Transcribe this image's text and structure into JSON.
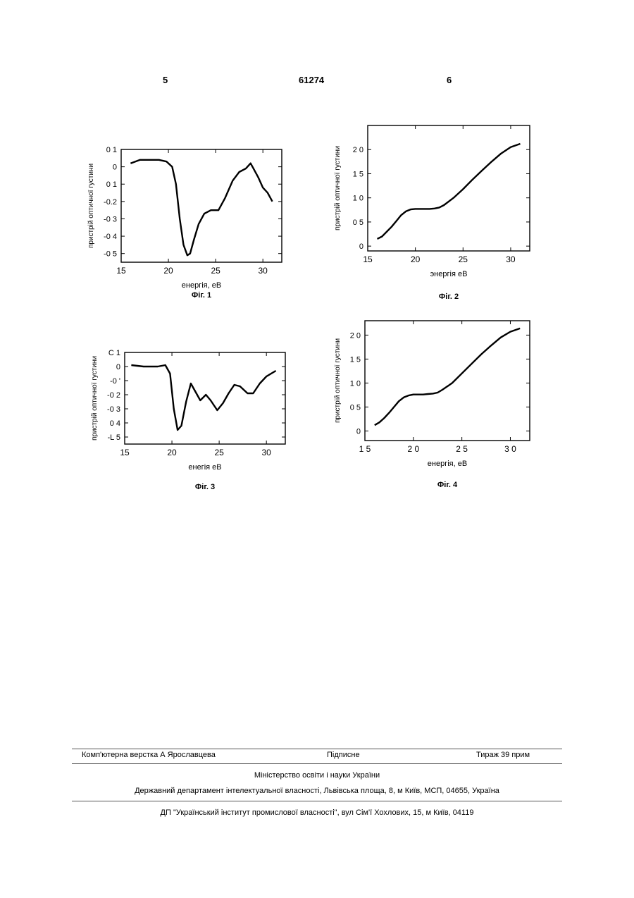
{
  "header": {
    "page_left": "5",
    "patent_number": "61274",
    "page_right": "6"
  },
  "footer": {
    "compositor": "Комп'ютерна верстка А  Ярославцева",
    "signature": "Підписне",
    "circulation": "Тираж 39 прим",
    "ministry": "Міністерство освіти і науки України",
    "department": "Державний департамент інтелектуальної власності, Львівська площа, 8, м  Київ, МСП, 04655, Україна",
    "institute": "ДП \"Український інститут промислової власності\", вул  Сім'ї Хохлових, 15, м  Київ, 04119"
  },
  "chart_data": [
    {
      "type": "line",
      "caption": "Фіг. 1",
      "xlabel": "енергія, еВ",
      "ylabel": "пристрій оптичної густини",
      "xlim": [
        15,
        32
      ],
      "ylim": [
        -0.55,
        0.1
      ],
      "xticks": [
        15,
        20,
        25,
        30
      ],
      "xtick_labels": [
        "15",
        "20",
        "25",
        "30"
      ],
      "yticks": [
        0.1,
        0,
        -0.1,
        -0.2,
        -0.3,
        -0.4,
        -0.5
      ],
      "ytick_labels": [
        "0 1",
        "0",
        "0 1",
        "-0.2",
        "-0 3",
        "-0 4",
        "-0 5"
      ],
      "series": [
        {
          "x": [
            16,
            17,
            18,
            19,
            19.8,
            20.4,
            20.8,
            21.2,
            21.6,
            22.0,
            22.3,
            22.7,
            23.2,
            23.8,
            24.5,
            25.3,
            26.0,
            26.8,
            27.5,
            28.2,
            28.7,
            29.0,
            29.5,
            30.0,
            30.5,
            31.0
          ],
          "y": [
            0.02,
            0.04,
            0.04,
            0.04,
            0.03,
            0.0,
            -0.1,
            -0.3,
            -0.45,
            -0.51,
            -0.5,
            -0.42,
            -0.33,
            -0.27,
            -0.25,
            -0.25,
            -0.18,
            -0.08,
            -0.03,
            -0.01,
            0.02,
            -0.01,
            -0.06,
            -0.12,
            -0.15,
            -0.2
          ]
        }
      ]
    },
    {
      "type": "line",
      "caption": "Фіг. 2",
      "xlabel": "энергія  еВ",
      "ylabel": "пристрій оптичної густини",
      "xlim": [
        15,
        32
      ],
      "ylim": [
        -0.1,
        2.5
      ],
      "xticks": [
        15,
        20,
        25,
        30
      ],
      "xtick_labels": [
        "15",
        "20",
        "25",
        "30"
      ],
      "yticks": [
        2.0,
        1.5,
        1.0,
        0.5,
        0
      ],
      "ytick_labels": [
        "2 0",
        "1 5",
        "1 0",
        "0 5",
        "0"
      ],
      "series": [
        {
          "x": [
            16,
            16.5,
            17,
            17.5,
            18,
            18.5,
            19,
            19.5,
            20,
            20.5,
            21,
            21.5,
            22,
            22.5,
            23,
            24,
            25,
            26,
            27,
            28,
            29,
            30,
            31
          ],
          "y": [
            0.15,
            0.2,
            0.3,
            0.4,
            0.52,
            0.64,
            0.72,
            0.76,
            0.77,
            0.77,
            0.77,
            0.77,
            0.78,
            0.8,
            0.85,
            1.0,
            1.18,
            1.38,
            1.57,
            1.75,
            1.92,
            2.05,
            2.12
          ]
        }
      ]
    },
    {
      "type": "line",
      "caption": "Фіг. 3",
      "xlabel": "енегія  еВ",
      "ylabel": "пристрій оптичної густини",
      "xlim": [
        15,
        32
      ],
      "ylim": [
        -0.55,
        0.1
      ],
      "xticks": [
        15,
        20,
        25,
        30
      ],
      "xtick_labels": [
        "15",
        "20",
        "25",
        "30"
      ],
      "yticks": [
        0.1,
        0,
        -0.1,
        -0.2,
        -0.3,
        -0.4,
        -0.5
      ],
      "ytick_labels": [
        "С 1",
        "0",
        "-0 '",
        "-0 2",
        "-0 3",
        "0 4",
        "-L 5"
      ],
      "series": [
        {
          "x": [
            15.7,
            17,
            18.5,
            19.3,
            19.8,
            20.2,
            20.6,
            21.0,
            21.5,
            22.0,
            22.5,
            23.0,
            23.6,
            24.1,
            24.8,
            25.4,
            26.0,
            26.6,
            27.2,
            28.0,
            28.6,
            29.3,
            30.0,
            30.5,
            31.0
          ],
          "y": [
            0.01,
            0.0,
            0.0,
            0.01,
            -0.05,
            -0.3,
            -0.45,
            -0.42,
            -0.25,
            -0.12,
            -0.18,
            -0.24,
            -0.2,
            -0.24,
            -0.31,
            -0.26,
            -0.19,
            -0.13,
            -0.14,
            -0.19,
            -0.19,
            -0.12,
            -0.07,
            -0.05,
            -0.03
          ]
        }
      ]
    },
    {
      "type": "line",
      "caption": "Фіг. 4",
      "xlabel": "енергія, еВ",
      "ylabel": "пристрій оптичної густини",
      "xlim": [
        15,
        32
      ],
      "ylim": [
        -0.2,
        2.3
      ],
      "xticks": [
        15,
        20,
        25,
        30
      ],
      "xtick_labels": [
        "1 5",
        "2 0",
        "2 5",
        "3 0"
      ],
      "yticks": [
        2.0,
        1.5,
        1.0,
        0.5,
        0
      ],
      "ytick_labels": [
        "2 0",
        "1 5",
        "1 0",
        "0 5",
        "0"
      ],
      "series": [
        {
          "x": [
            16,
            16.5,
            17,
            17.5,
            18,
            18.5,
            19,
            19.5,
            20,
            20.5,
            21,
            21.5,
            22,
            22.5,
            23,
            24,
            25,
            26,
            27,
            28,
            29,
            30,
            31
          ],
          "y": [
            0.12,
            0.18,
            0.27,
            0.38,
            0.5,
            0.62,
            0.7,
            0.74,
            0.76,
            0.76,
            0.76,
            0.77,
            0.78,
            0.8,
            0.86,
            1.0,
            1.2,
            1.4,
            1.6,
            1.78,
            1.95,
            2.07,
            2.14
          ]
        }
      ]
    }
  ]
}
